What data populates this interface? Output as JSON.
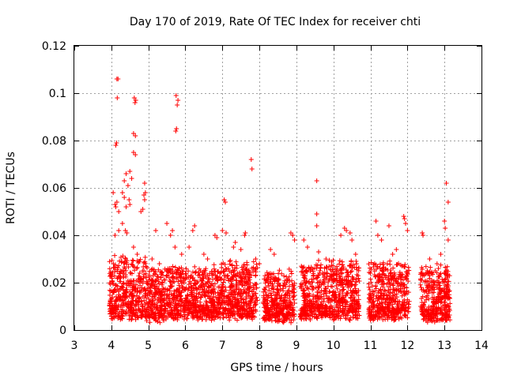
{
  "chart_data": {
    "type": "scatter",
    "title": "Day 170 of 2019, Rate Of TEC Index for receiver chti",
    "xlabel": "GPS time / hours",
    "ylabel": "ROTI / TECUs",
    "xlim": [
      3,
      14
    ],
    "ylim": [
      0,
      0.12
    ],
    "xticks": [
      3,
      4,
      5,
      6,
      7,
      8,
      9,
      10,
      11,
      12,
      13,
      14
    ],
    "xtick_labels": [
      "3",
      "4",
      "5",
      "6",
      "7",
      "8",
      "9",
      "10",
      "11",
      "12",
      "13",
      "14"
    ],
    "yticks": [
      0,
      0.02,
      0.04,
      0.06,
      0.08,
      0.1,
      0.12
    ],
    "ytick_labels": [
      "0",
      "0.02",
      "0.04",
      "0.06",
      "0.08",
      "0.1",
      "0.12"
    ],
    "grid": true,
    "marker": "+",
    "color": "#ff0000",
    "series": [
      {
        "name": "ROTI",
        "points": [
          [
            4.15,
            0.106
          ],
          [
            4.18,
            0.106
          ],
          [
            4.16,
            0.098
          ],
          [
            4.12,
            0.078
          ],
          [
            4.14,
            0.079
          ],
          [
            4.62,
            0.098
          ],
          [
            4.64,
            0.096
          ],
          [
            4.66,
            0.097
          ],
          [
            4.6,
            0.083
          ],
          [
            4.65,
            0.082
          ],
          [
            4.6,
            0.075
          ],
          [
            4.65,
            0.074
          ],
          [
            4.4,
            0.066
          ],
          [
            4.5,
            0.067
          ],
          [
            4.35,
            0.063
          ],
          [
            4.45,
            0.061
          ],
          [
            4.55,
            0.064
          ],
          [
            4.9,
            0.062
          ],
          [
            4.92,
            0.058
          ],
          [
            4.88,
            0.057
          ],
          [
            4.3,
            0.058
          ],
          [
            4.35,
            0.056
          ],
          [
            4.48,
            0.055
          ],
          [
            4.05,
            0.058
          ],
          [
            4.1,
            0.053
          ],
          [
            4.12,
            0.052
          ],
          [
            4.15,
            0.054
          ],
          [
            4.2,
            0.05
          ],
          [
            4.4,
            0.052
          ],
          [
            4.5,
            0.053
          ],
          [
            4.8,
            0.05
          ],
          [
            4.85,
            0.051
          ],
          [
            4.9,
            0.055
          ],
          [
            4.38,
            0.042
          ],
          [
            4.42,
            0.041
          ],
          [
            4.1,
            0.04
          ],
          [
            4.2,
            0.042
          ],
          [
            4.3,
            0.045
          ],
          [
            4.6,
            0.035
          ],
          [
            4.7,
            0.032
          ],
          [
            5.75,
            0.099
          ],
          [
            5.78,
            0.095
          ],
          [
            5.8,
            0.097
          ],
          [
            5.76,
            0.085
          ],
          [
            5.74,
            0.084
          ],
          [
            5.5,
            0.045
          ],
          [
            5.6,
            0.04
          ],
          [
            5.65,
            0.042
          ],
          [
            5.72,
            0.035
          ],
          [
            5.2,
            0.042
          ],
          [
            5.1,
            0.03
          ],
          [
            5.3,
            0.028
          ],
          [
            5.9,
            0.032
          ],
          [
            6.1,
            0.035
          ],
          [
            6.2,
            0.042
          ],
          [
            6.25,
            0.044
          ],
          [
            6.5,
            0.032
          ],
          [
            6.6,
            0.03
          ],
          [
            6.8,
            0.04
          ],
          [
            6.85,
            0.039
          ],
          [
            7.05,
            0.055
          ],
          [
            7.08,
            0.054
          ],
          [
            7.0,
            0.042
          ],
          [
            7.1,
            0.041
          ],
          [
            7.3,
            0.035
          ],
          [
            7.35,
            0.037
          ],
          [
            7.5,
            0.034
          ],
          [
            7.6,
            0.04
          ],
          [
            7.62,
            0.041
          ],
          [
            7.78,
            0.072
          ],
          [
            7.8,
            0.068
          ],
          [
            7.9,
            0.03
          ],
          [
            8.0,
            0.028
          ],
          [
            8.3,
            0.034
          ],
          [
            8.4,
            0.032
          ],
          [
            8.85,
            0.041
          ],
          [
            8.9,
            0.04
          ],
          [
            8.95,
            0.038
          ],
          [
            9.55,
            0.063
          ],
          [
            9.55,
            0.049
          ],
          [
            9.55,
            0.044
          ],
          [
            9.2,
            0.038
          ],
          [
            9.3,
            0.035
          ],
          [
            9.6,
            0.033
          ],
          [
            9.8,
            0.03
          ],
          [
            10.2,
            0.04
          ],
          [
            10.3,
            0.043
          ],
          [
            10.35,
            0.042
          ],
          [
            10.45,
            0.041
          ],
          [
            10.5,
            0.038
          ],
          [
            10.6,
            0.032
          ],
          [
            11.15,
            0.046
          ],
          [
            11.2,
            0.04
          ],
          [
            11.3,
            0.038
          ],
          [
            11.5,
            0.044
          ],
          [
            11.6,
            0.032
          ],
          [
            11.7,
            0.034
          ],
          [
            11.9,
            0.048
          ],
          [
            11.92,
            0.047
          ],
          [
            11.95,
            0.045
          ],
          [
            12.0,
            0.042
          ],
          [
            12.4,
            0.041
          ],
          [
            12.42,
            0.04
          ],
          [
            12.6,
            0.03
          ],
          [
            12.8,
            0.028
          ],
          [
            13.05,
            0.062
          ],
          [
            13.1,
            0.054
          ],
          [
            13.0,
            0.046
          ],
          [
            13.02,
            0.043
          ],
          [
            13.1,
            0.038
          ],
          [
            12.9,
            0.032
          ]
        ],
        "dense_bands": [
          {
            "x0": 3.95,
            "x1": 4.95,
            "ymin": 0.004,
            "ymax": 0.028
          },
          {
            "x0": 4.95,
            "x1": 5.95,
            "ymin": 0.003,
            "ymax": 0.024
          },
          {
            "x0": 5.95,
            "x1": 6.9,
            "ymin": 0.004,
            "ymax": 0.024
          },
          {
            "x0": 6.9,
            "x1": 7.95,
            "ymin": 0.004,
            "ymax": 0.026
          },
          {
            "x0": 8.1,
            "x1": 8.95,
            "ymin": 0.003,
            "ymax": 0.022
          },
          {
            "x0": 9.1,
            "x1": 10.7,
            "ymin": 0.004,
            "ymax": 0.026
          },
          {
            "x0": 10.95,
            "x1": 12.05,
            "ymin": 0.004,
            "ymax": 0.026
          },
          {
            "x0": 12.35,
            "x1": 13.15,
            "ymin": 0.003,
            "ymax": 0.024
          }
        ]
      }
    ]
  }
}
